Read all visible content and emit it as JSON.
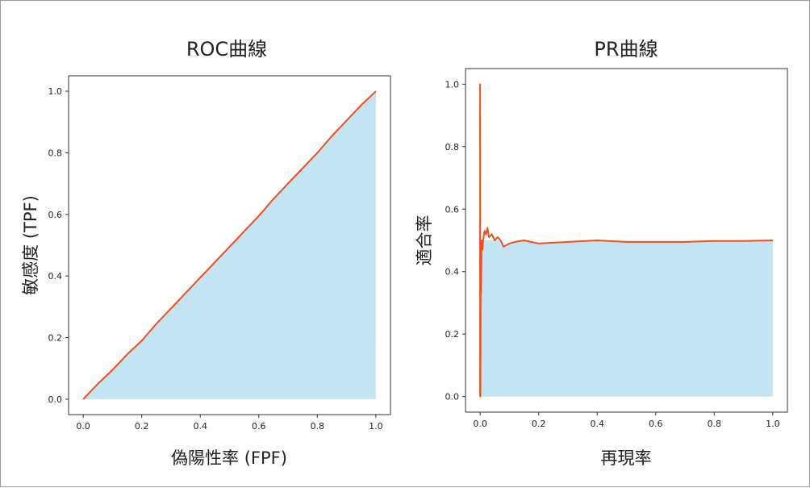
{
  "chart_data": [
    {
      "type": "area",
      "title": "ROC曲線",
      "xlabel": "偽陽性率 (FPF)",
      "ylabel": "敏感度 (TPF)",
      "xlim": [
        -0.05,
        1.05
      ],
      "ylim": [
        -0.05,
        1.05
      ],
      "xticks": [
        "0.0",
        "0.2",
        "0.4",
        "0.6",
        "0.8",
        "1.0"
      ],
      "yticks": [
        "0.0",
        "0.2",
        "0.4",
        "0.6",
        "0.8",
        "1.0"
      ],
      "grid": false,
      "series": [
        {
          "x": [
            0.0,
            0.02,
            0.05,
            0.1,
            0.15,
            0.2,
            0.25,
            0.3,
            0.35,
            0.4,
            0.45,
            0.5,
            0.55,
            0.6,
            0.65,
            0.7,
            0.75,
            0.8,
            0.85,
            0.9,
            0.95,
            1.0
          ],
          "y": [
            0.0,
            0.02,
            0.05,
            0.095,
            0.145,
            0.19,
            0.245,
            0.295,
            0.345,
            0.395,
            0.445,
            0.495,
            0.545,
            0.595,
            0.65,
            0.7,
            0.75,
            0.8,
            0.855,
            0.905,
            0.955,
            1.0
          ]
        }
      ]
    },
    {
      "type": "area",
      "title": "PR曲線",
      "xlabel": "再現率",
      "ylabel": "適合率",
      "xlim": [
        -0.05,
        1.05
      ],
      "ylim": [
        -0.05,
        1.05
      ],
      "xticks": [
        "0.0",
        "0.2",
        "0.4",
        "0.6",
        "0.8",
        "1.0"
      ],
      "yticks": [
        "0.0",
        "0.2",
        "0.4",
        "0.6",
        "0.8",
        "1.0"
      ],
      "grid": false,
      "series": [
        {
          "x": [
            0.0,
            0.0,
            0.001,
            0.002,
            0.003,
            0.005,
            0.008,
            0.01,
            0.015,
            0.02,
            0.025,
            0.03,
            0.04,
            0.05,
            0.06,
            0.07,
            0.08,
            0.1,
            0.12,
            0.15,
            0.2,
            0.3,
            0.4,
            0.5,
            0.6,
            0.7,
            0.8,
            0.9,
            1.0
          ],
          "y": [
            0.0,
            1.0,
            0.0,
            0.5,
            0.33,
            0.5,
            0.47,
            0.5,
            0.53,
            0.52,
            0.54,
            0.51,
            0.52,
            0.5,
            0.51,
            0.5,
            0.48,
            0.49,
            0.495,
            0.5,
            0.49,
            0.495,
            0.5,
            0.495,
            0.495,
            0.495,
            0.498,
            0.498,
            0.5
          ]
        }
      ]
    }
  ]
}
